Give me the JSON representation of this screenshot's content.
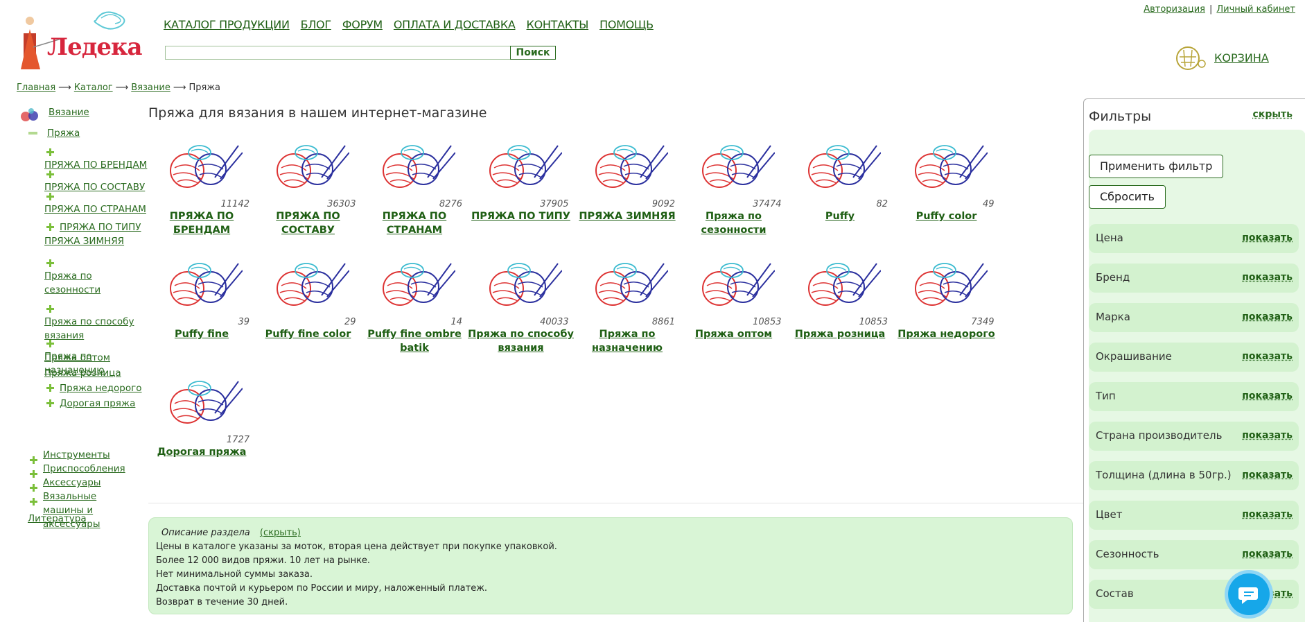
{
  "header": {
    "logo_text": "Ледека",
    "nav": [
      "КАТАЛОГ ПРОДУКЦИИ",
      "БЛОГ",
      "ФОРУМ",
      "ОПЛАТА И ДОСТАВКА",
      "КОНТАКТЫ",
      "ПОМОЩЬ"
    ],
    "search_button": "Поиск",
    "search_value": "",
    "auth_login": "Авторизация",
    "auth_sep": "|",
    "auth_cabinet": "Личный кабинет",
    "cart_label": "КОРЗИНА"
  },
  "breadcrumb": [
    "Главная",
    "Каталог",
    "Вязание",
    "Пряжа"
  ],
  "breadcrumb_arrow": "⟶",
  "sidebar": {
    "vyazanie": "Вязание",
    "pryazha": "Пряжа",
    "sub": [
      "ПРЯЖА ПО БРЕНДАМ",
      "ПРЯЖА ПО СОСТАВУ",
      "ПРЯЖА ПО СТРАНАМ",
      "ПРЯЖА ПО ТИПУ",
      "ПРЯЖА ЗИМНЯЯ",
      "Пряжа по сезонности",
      "Пряжа по способу вязания",
      "Пряжа по назначению",
      "Пряжа оптом",
      "Пряжа розница",
      "Пряжа недорого",
      "Дорогая пряжа"
    ],
    "top": [
      "Инструменты",
      "Приспособления",
      "Аксессуары",
      "Вязальные машины и аксессуары"
    ],
    "literatura": "Литература"
  },
  "main": {
    "title": "Пряжа для вязания в нашем интернет-магазине",
    "cards": [
      {
        "name": "ПРЯЖА ПО БРЕНДАМ",
        "count": "11142"
      },
      {
        "name": "ПРЯЖА ПО СОСТАВУ",
        "count": "36303"
      },
      {
        "name": "ПРЯЖА ПО СТРАНАМ",
        "count": "8276"
      },
      {
        "name": "ПРЯЖА ПО ТИПУ",
        "count": "37905"
      },
      {
        "name": "ПРЯЖА ЗИМНЯЯ",
        "count": "9092"
      },
      {
        "name": "Пряжа по сезонности",
        "count": "37474"
      },
      {
        "name": "Puffy",
        "count": "82"
      },
      {
        "name": "Puffy color",
        "count": "49"
      },
      {
        "name": "Puffy fine",
        "count": "39"
      },
      {
        "name": "Puffy fine color",
        "count": "29"
      },
      {
        "name": "Puffy fine ombre batik",
        "count": "14"
      },
      {
        "name": "Пряжа по способу вязания",
        "count": "40033"
      },
      {
        "name": "Пряжа по назначению",
        "count": "8861"
      },
      {
        "name": "Пряжа оптом",
        "count": "10853"
      },
      {
        "name": "Пряжа розница",
        "count": "10853"
      },
      {
        "name": "Пряжа недорого",
        "count": "7349"
      },
      {
        "name": "Дорогая пряжа",
        "count": "1727"
      }
    ]
  },
  "description": {
    "header": "Описание раздела",
    "hide": "(скрыть)",
    "lines": [
      "Цены в каталоге указаны за моток, вторая цена действует при покупке упаковкой.",
      "Более 12 000 видов пряжи. 10 лет на рынке.",
      "Нет минимальной суммы заказа.",
      "Доставка почтой и курьером по России и миру, наложенный платеж.",
      "Возврат в течение 30 дней."
    ]
  },
  "filters": {
    "title": "Фильтры",
    "hide": "скрыть",
    "apply": "Применить фильтр",
    "reset": "Сбросить",
    "show_label": "показать",
    "rows": [
      "Цена",
      "Бренд",
      "Марка",
      "Окрашивание",
      "Тип",
      "Страна производитель",
      "Толщина (длина в 50гр.)",
      "Цвет",
      "Сезонность",
      "Состав"
    ]
  },
  "colors": {
    "accent": "#2a6b1f",
    "panel": "#d3f2cf",
    "chat": "#16a7e9"
  }
}
